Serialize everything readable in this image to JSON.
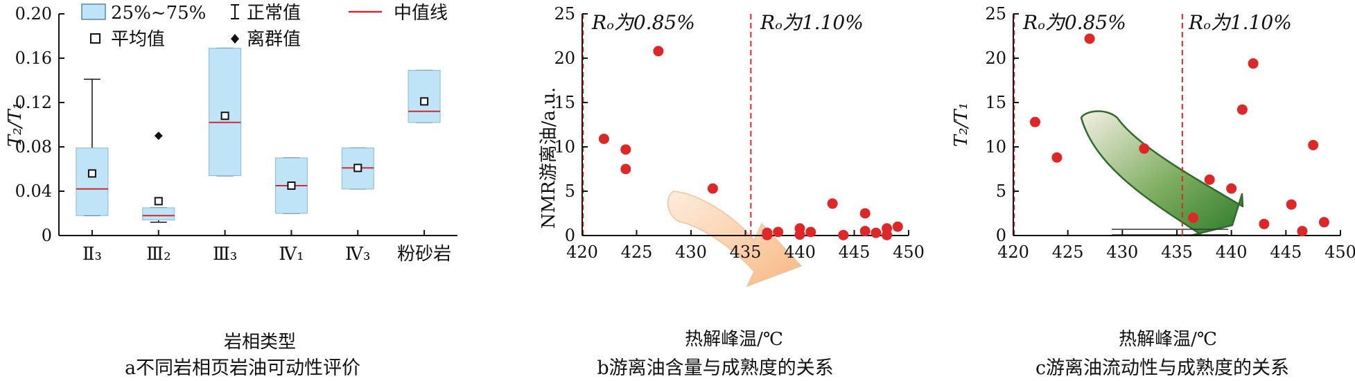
{
  "chart_data": [
    {
      "id": "a",
      "type": "box",
      "caption": "a不同岩相页岩油可动性评价",
      "xlabel": "岩相类型",
      "ylabel": "T₂/T₁",
      "ylim": [
        0,
        0.2
      ],
      "yticks": [
        "0",
        "0.04",
        "0.08",
        "0.12",
        "0.16",
        "0.20"
      ],
      "legend": {
        "box": "25%~75%",
        "whisker": "正常值",
        "median": "中值线",
        "mean": "平均值",
        "outlier": "离群值"
      },
      "colors": {
        "box_fill": "#bfe3f7",
        "box_edge": "#8ab8d6",
        "median": "#d02a2a"
      },
      "categories": [
        "Ⅱ₃",
        "Ⅲ₂",
        "Ⅲ₃",
        "Ⅳ₁",
        "Ⅳ₃",
        "粉砂岩"
      ],
      "boxes": [
        {
          "whisker_low": 0.018,
          "q1": 0.018,
          "median": 0.042,
          "q3": 0.079,
          "whisker_high": 0.141,
          "mean": 0.056
        },
        {
          "whisker_low": 0.012,
          "q1": 0.014,
          "median": 0.018,
          "q3": 0.025,
          "whisker_high": 0.025,
          "mean": 0.031,
          "outliers": [
            0.09
          ]
        },
        {
          "whisker_low": 0.054,
          "q1": 0.054,
          "median": 0.102,
          "q3": 0.169,
          "whisker_high": 0.169,
          "mean": 0.108
        },
        {
          "whisker_low": 0.02,
          "q1": 0.02,
          "median": 0.045,
          "q3": 0.07,
          "whisker_high": 0.07,
          "mean": 0.045
        },
        {
          "whisker_low": 0.042,
          "q1": 0.042,
          "median": 0.061,
          "q3": 0.079,
          "whisker_high": 0.079,
          "mean": 0.061
        },
        {
          "whisker_low": 0.102,
          "q1": 0.102,
          "median": 0.112,
          "q3": 0.149,
          "whisker_high": 0.149,
          "mean": 0.121
        }
      ]
    },
    {
      "id": "b",
      "type": "scatter",
      "caption": "b游离油含量与成熟度的关系",
      "xlabel": "热解峰温/℃",
      "ylabel": "NMR游离油/a.u.",
      "xlim": [
        420,
        450
      ],
      "ylim": [
        0,
        25
      ],
      "xticks": [
        "420",
        "425",
        "430",
        "435",
        "440",
        "445",
        "450"
      ],
      "yticks": [
        "0",
        "5",
        "10",
        "15",
        "20",
        "25"
      ],
      "vline": 435.5,
      "annotations": {
        "left": "Rₒ为0.85%",
        "right": "Rₒ为1.10%"
      },
      "colors": {
        "points": "#e02727",
        "vline": "#e02727",
        "arrow": "#f5b47c"
      },
      "points": [
        [
          422,
          10.9
        ],
        [
          424,
          9.7
        ],
        [
          424,
          7.5
        ],
        [
          427,
          20.8
        ],
        [
          432,
          5.3
        ],
        [
          437,
          0.3
        ],
        [
          437,
          0.05
        ],
        [
          438,
          0.4
        ],
        [
          440,
          0.8
        ],
        [
          440,
          0.1
        ],
        [
          441,
          0.4
        ],
        [
          443,
          3.6
        ],
        [
          444,
          0.05
        ],
        [
          446,
          2.5
        ],
        [
          446,
          0.5
        ],
        [
          447,
          0.3
        ],
        [
          448,
          0.8
        ],
        [
          448,
          0.05
        ],
        [
          449,
          1.0
        ]
      ]
    },
    {
      "id": "c",
      "type": "scatter",
      "caption": "c游离油流动性与成熟度的关系",
      "xlabel": "热解峰温/℃",
      "ylabel": "T₂/T₁",
      "xlim": [
        420,
        450
      ],
      "ylim": [
        0,
        25
      ],
      "xticks": [
        "420",
        "425",
        "430",
        "435",
        "440",
        "445",
        "450"
      ],
      "yticks": [
        "0",
        "5",
        "10",
        "15",
        "20",
        "25"
      ],
      "vline": 435.5,
      "annotations": {
        "left": "Rₒ为0.85%",
        "right": "Rₒ为1.10%"
      },
      "colors": {
        "points": "#e02727",
        "vline": "#e02727",
        "arrow": "#4e9a3c"
      },
      "points": [
        [
          422,
          12.8
        ],
        [
          424,
          8.8
        ],
        [
          427,
          22.2
        ],
        [
          432,
          9.8
        ],
        [
          436.5,
          2.0
        ],
        [
          438,
          6.3
        ],
        [
          440,
          5.3
        ],
        [
          441,
          14.2
        ],
        [
          442,
          19.4
        ],
        [
          443,
          1.3
        ],
        [
          445.5,
          3.5
        ],
        [
          446.5,
          0.5
        ],
        [
          447.5,
          10.2
        ],
        [
          448.5,
          1.5
        ]
      ]
    }
  ]
}
